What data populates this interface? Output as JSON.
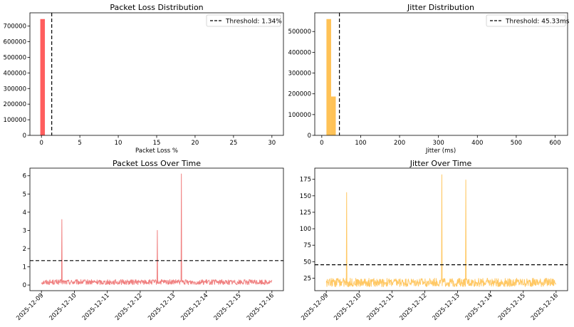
{
  "colors": {
    "loss": "#ff4d4d",
    "loss_line": "#f08080",
    "jitter": "#ffbb44",
    "jitter_line": "#ffc864",
    "threshold": "#000000"
  },
  "chart_data": [
    {
      "type": "bar",
      "id": "loss-hist",
      "title": "Packet Loss Distribution",
      "xlabel": "Packet Loss %",
      "ylabel": "",
      "xlim": [
        -1.5,
        31.5
      ],
      "ylim": [
        0,
        785000
      ],
      "xticks": [
        0,
        5,
        10,
        15,
        20,
        25,
        30
      ],
      "yticks": [
        0,
        100000,
        200000,
        300000,
        400000,
        500000,
        600000,
        700000
      ],
      "bins": [
        {
          "x0": -0.15,
          "x1": 0.45,
          "count": 745000
        }
      ],
      "threshold": 1.34,
      "legend": "Threshold: 1.34%",
      "legend_position": "top-right"
    },
    {
      "type": "bar",
      "id": "jitter-hist",
      "title": "Jitter Distribution",
      "xlabel": "Jitter (ms)",
      "ylabel": "",
      "xlim": [
        -18,
        632
      ],
      "ylim": [
        0,
        590000
      ],
      "xticks": [
        0,
        100,
        200,
        300,
        400,
        500,
        600
      ],
      "yticks": [
        0,
        100000,
        200000,
        300000,
        400000,
        500000
      ],
      "bins": [
        {
          "x0": 12,
          "x1": 24,
          "count": 560000
        },
        {
          "x0": 24,
          "x1": 36,
          "count": 187000
        }
      ],
      "threshold": 45.33,
      "legend": "Threshold: 45.33ms",
      "legend_position": "top-right"
    },
    {
      "type": "line",
      "id": "loss-time",
      "title": "Packet Loss Over Time",
      "xlabel": "",
      "ylabel": "",
      "xlim": [
        -0.35,
        7.35
      ],
      "ylim": [
        -0.31,
        6.42
      ],
      "xticks": [
        "2025-12-09",
        "2025-12-10",
        "2025-12-11",
        "2025-12-12",
        "2025-12-13",
        "2025-12-14",
        "2025-12-15",
        "2025-12-16"
      ],
      "yticks": [
        0,
        1,
        2,
        3,
        4,
        5,
        6
      ],
      "threshold": 1.34,
      "noise": {
        "low": 0.02,
        "high": 0.3
      },
      "spikes": [
        {
          "x": 0.62,
          "y": 3.6
        },
        {
          "x": 3.52,
          "y": 3.0
        },
        {
          "x": 4.25,
          "y": 6.1
        }
      ]
    },
    {
      "type": "line",
      "id": "jitter-time",
      "title": "Jitter Over Time",
      "xlabel": "",
      "ylabel": "",
      "xlim": [
        -0.35,
        7.35
      ],
      "ylim": [
        6,
        192
      ],
      "xticks": [
        "2025-12-09",
        "2025-12-10",
        "2025-12-11",
        "2025-12-12",
        "2025-12-13",
        "2025-12-14",
        "2025-12-15",
        "2025-12-16"
      ],
      "yticks": [
        25,
        50,
        75,
        100,
        125,
        150,
        175
      ],
      "threshold": 45.33,
      "noise": {
        "low": 12,
        "high": 25
      },
      "spikes": [
        {
          "x": 0.62,
          "y": 155
        },
        {
          "x": 3.52,
          "y": 182
        },
        {
          "x": 4.25,
          "y": 174
        }
      ]
    }
  ]
}
